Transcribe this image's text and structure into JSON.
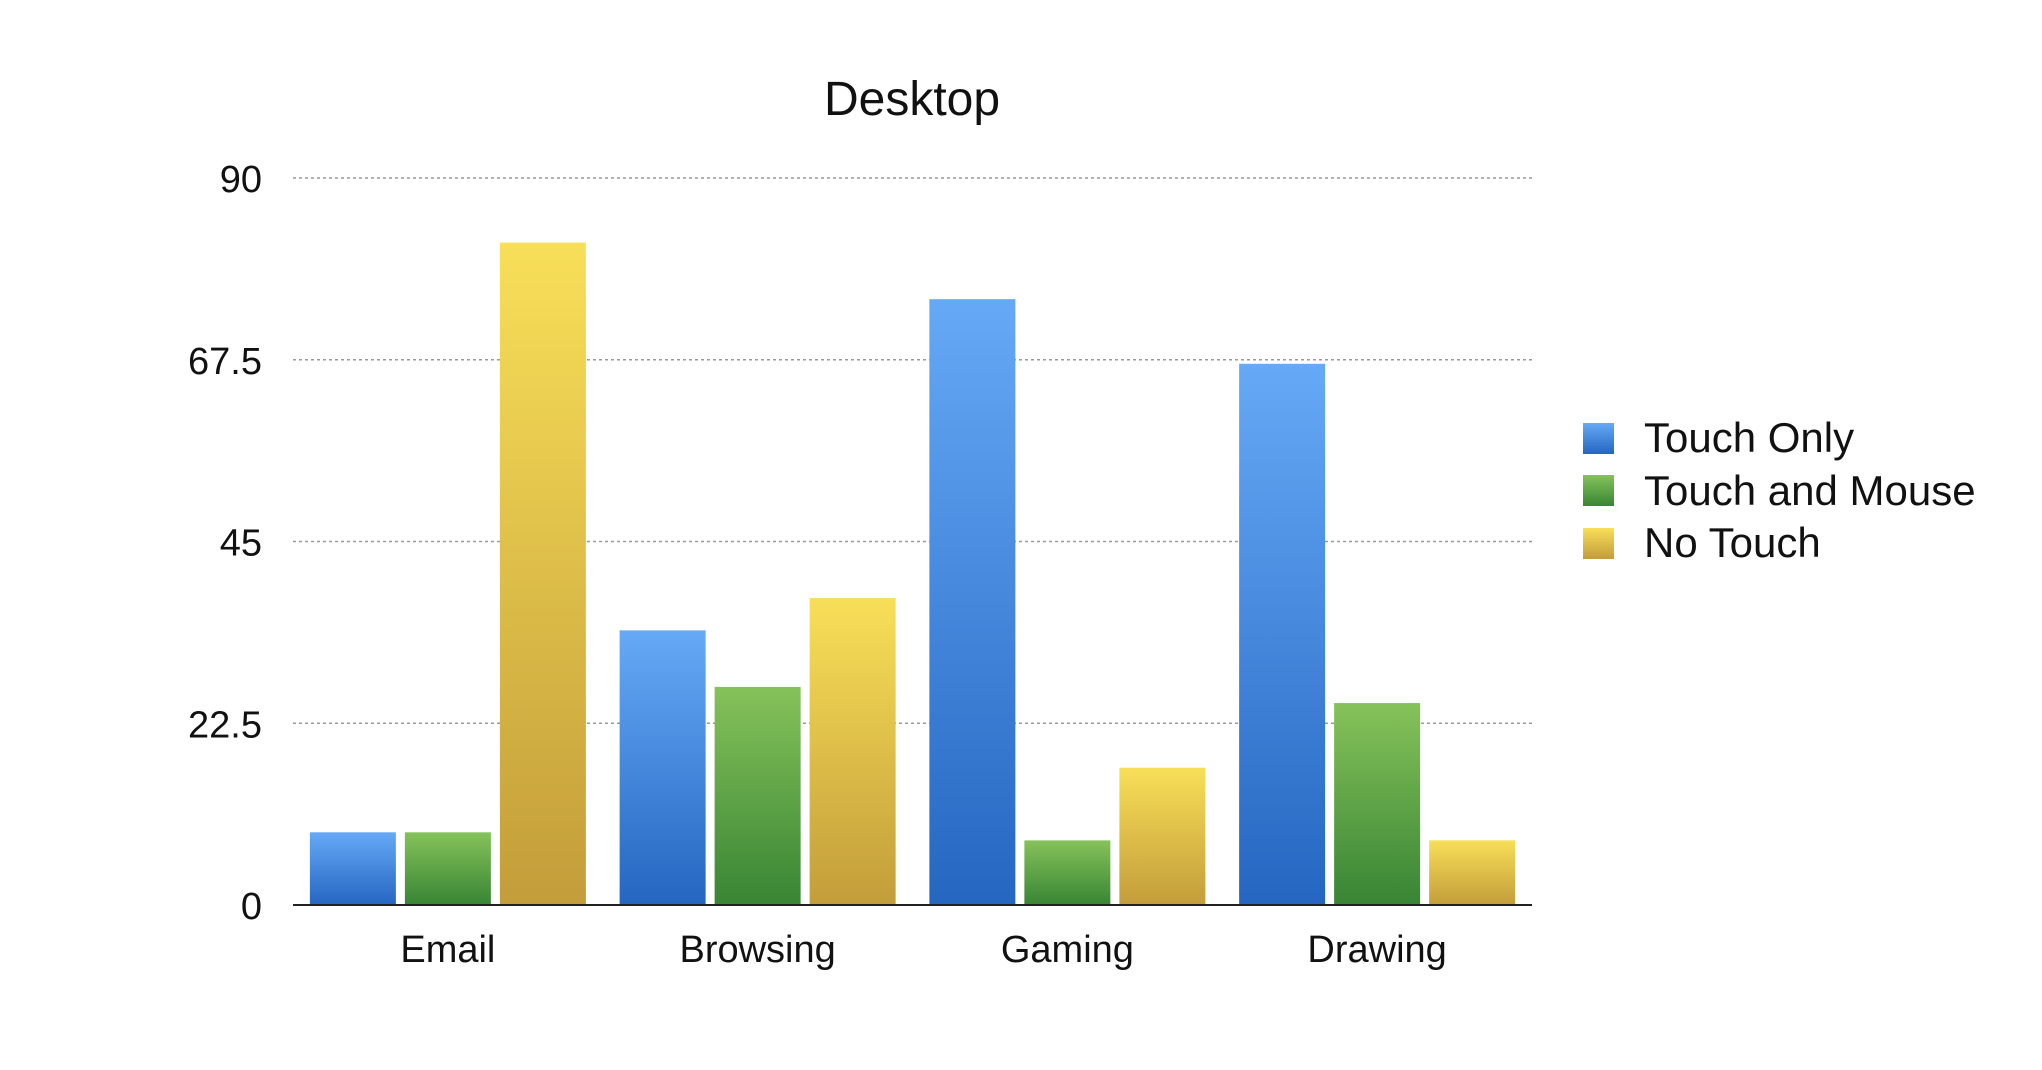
{
  "chart_data": {
    "type": "bar",
    "title": "Desktop",
    "xlabel": "",
    "ylabel": "",
    "categories": [
      "Email",
      "Browsing",
      "Gaming",
      "Drawing"
    ],
    "series": [
      {
        "name": "Touch Only",
        "values": [
          9,
          34,
          75,
          67
        ],
        "color": "#3a7fd9"
      },
      {
        "name": "Touch and Mouse",
        "values": [
          9,
          27,
          8,
          25
        ],
        "color": "#4a9d3f"
      },
      {
        "name": "No Touch",
        "values": [
          82,
          38,
          17,
          8
        ],
        "color": "#d9b53e"
      }
    ],
    "y_ticks": [
      "0",
      "22.5",
      "45",
      "67.5",
      "90"
    ],
    "ylim": [
      0,
      90
    ],
    "grid": true,
    "legend_position": "right"
  }
}
